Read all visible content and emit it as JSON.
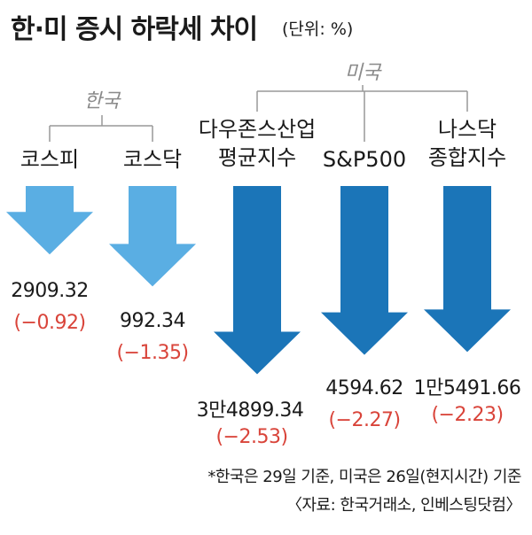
{
  "title": "한·미 증시 하락세 차이",
  "unit": "(단위: %)",
  "colors": {
    "korea": "#5aaee3",
    "us": "#1b75b8",
    "negative": "#d9443a",
    "bracket": "#999999"
  },
  "groups": [
    {
      "label": "한국"
    },
    {
      "label": "미국"
    }
  ],
  "chart_data": {
    "type": "bar",
    "categories": [
      "코스피",
      "코스닥",
      "다우존스산업 평균지수",
      "S&P500",
      "나스닥 종합지수"
    ],
    "index_values": [
      "2909.32",
      "992.34",
      "3만4899.34",
      "4594.62",
      "1만5491.66"
    ],
    "change_labels": [
      "(−0.92)",
      "(−1.35)",
      "(−2.53)",
      "(−2.27)",
      "(−2.23)"
    ],
    "values": [
      -0.92,
      -1.35,
      -2.53,
      -2.27,
      -2.23
    ],
    "group_of": [
      0,
      0,
      1,
      1,
      1
    ]
  },
  "items": [
    {
      "line1": "코스피",
      "line2": "",
      "value": "2909.32",
      "change": "(−0.92)"
    },
    {
      "line1": "코스닥",
      "line2": "",
      "value": "992.34",
      "change": "(−1.35)"
    },
    {
      "line1": "다우존스산업",
      "line2": "평균지수",
      "value": "3만4899.34",
      "change": "(−2.53)"
    },
    {
      "line1": "S&P500",
      "line2": "",
      "value": "4594.62",
      "change": "(−2.27)"
    },
    {
      "line1": "나스닥",
      "line2": "종합지수",
      "value": "1만5491.66",
      "change": "(−2.23)"
    }
  ],
  "footnote": "*한국은 29일 기준, 미국은 26일(현지시간) 기준",
  "source": "〈자료: 한국거래소, 인베스팅닷컴〉"
}
